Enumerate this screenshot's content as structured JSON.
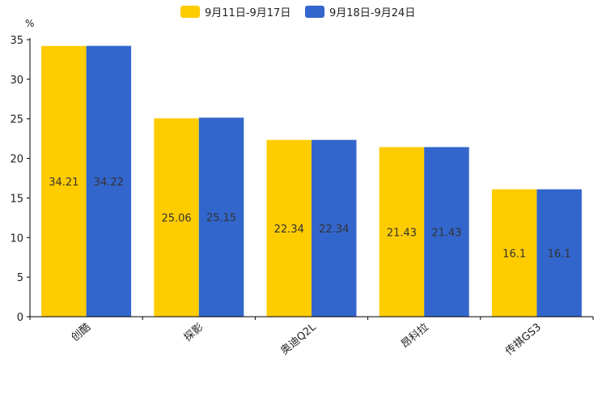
{
  "chart_data": {
    "type": "bar",
    "unit_label": "%",
    "categories": [
      "创酷",
      "探影",
      "奥迪Q2L",
      "昂科拉",
      "传祺GS3"
    ],
    "series": [
      {
        "name": "9月11日-9月17日",
        "color": "#FFCC00",
        "values": [
          34.21,
          25.06,
          22.34,
          21.43,
          16.1
        ],
        "labels": [
          "34.21",
          "25.06",
          "22.34",
          "21.43",
          "16.1"
        ]
      },
      {
        "name": "9月18日-9月24日",
        "color": "#3366CC",
        "values": [
          34.22,
          25.15,
          22.34,
          21.43,
          16.1
        ],
        "labels": [
          "34.22",
          "25.15",
          "22.34",
          "21.43",
          "16.1"
        ]
      }
    ],
    "ylim": [
      0,
      35
    ],
    "yticks": [
      0,
      5,
      10,
      15,
      20,
      25,
      30,
      35
    ],
    "legend_position": "top-center",
    "grid": false
  }
}
